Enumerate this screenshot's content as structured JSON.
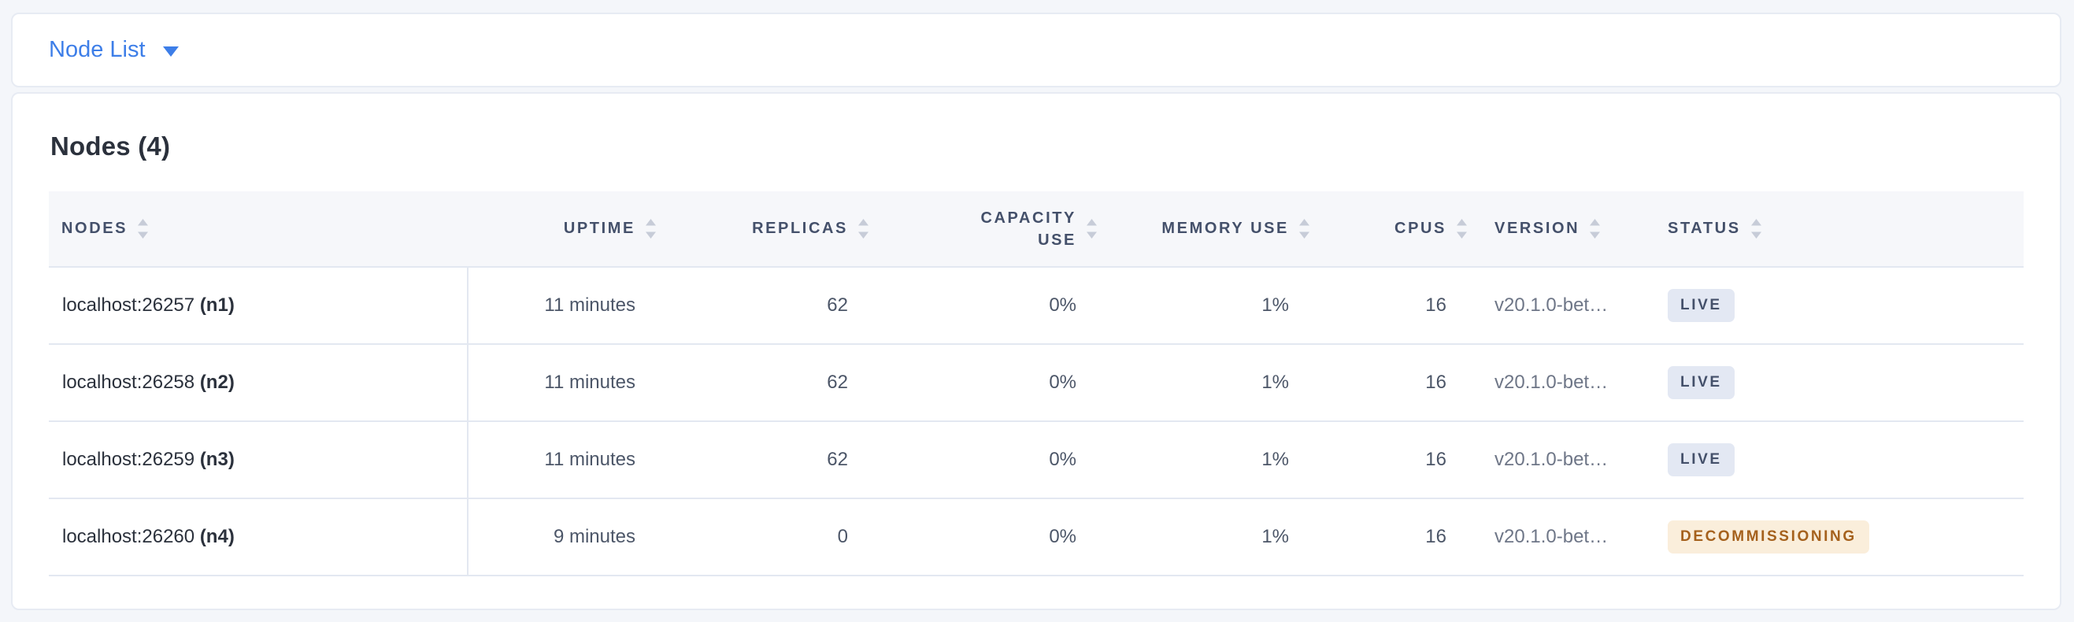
{
  "topbar": {
    "view_selector_label": "Node List"
  },
  "main": {
    "title": "Nodes (4)",
    "table": {
      "columns": [
        {
          "key": "nodes",
          "label": "Nodes",
          "align": "left"
        },
        {
          "key": "uptime",
          "label": "Uptime",
          "align": "right"
        },
        {
          "key": "replicas",
          "label": "Replicas",
          "align": "right"
        },
        {
          "key": "capacity_use",
          "label": "Capacity Use",
          "align": "right"
        },
        {
          "key": "memory_use",
          "label": "Memory Use",
          "align": "right"
        },
        {
          "key": "cpus",
          "label": "CPUs",
          "align": "right"
        },
        {
          "key": "version",
          "label": "Version",
          "align": "left"
        },
        {
          "key": "status",
          "label": "Status",
          "align": "left"
        }
      ],
      "rows": [
        {
          "address": "localhost:26257",
          "id": "(n1)",
          "uptime": "11 minutes",
          "replicas": "62",
          "capacity_use": "0%",
          "memory_use": "1%",
          "cpus": "16",
          "version": "v20.1.0-bet…",
          "status": "LIVE"
        },
        {
          "address": "localhost:26258",
          "id": "(n2)",
          "uptime": "11 minutes",
          "replicas": "62",
          "capacity_use": "0%",
          "memory_use": "1%",
          "cpus": "16",
          "version": "v20.1.0-bet…",
          "status": "LIVE"
        },
        {
          "address": "localhost:26259",
          "id": "(n3)",
          "uptime": "11 minutes",
          "replicas": "62",
          "capacity_use": "0%",
          "memory_use": "1%",
          "cpus": "16",
          "version": "v20.1.0-bet…",
          "status": "LIVE"
        },
        {
          "address": "localhost:26260",
          "id": "(n4)",
          "uptime": "9 minutes",
          "replicas": "0",
          "capacity_use": "0%",
          "memory_use": "1%",
          "cpus": "16",
          "version": "v20.1.0-bet…",
          "status": "DECOMMISSIONING"
        }
      ]
    }
  },
  "colors": {
    "accent_blue": "#3d7ee8",
    "live_badge_bg": "#e3e8f3",
    "live_badge_text": "#44506a",
    "decommissioning_badge_bg": "#faeedb",
    "decommissioning_badge_text": "#a5611d"
  }
}
